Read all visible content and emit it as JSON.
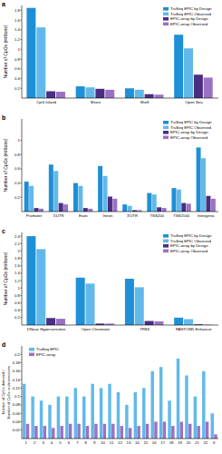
{
  "chart_data": [
    {
      "type": "bar",
      "panel": "a",
      "y_label": [
        "Number of CpGs (millions)"
      ],
      "categories": [
        "CpG-Island",
        "Shore",
        "Shelf",
        "Open Sea"
      ],
      "series": [
        {
          "name": "TruSeq EPIC by Design",
          "color": "#1f8fd6",
          "values": [
            1.85,
            0.24,
            0.2,
            1.3
          ]
        },
        {
          "name": "TruSeq EPIC Observed",
          "color": "#62b9e9",
          "values": [
            1.45,
            0.22,
            0.17,
            1.02
          ]
        },
        {
          "name": "EPIC-array by Design",
          "color": "#4b2d83",
          "values": [
            0.14,
            0.19,
            0.08,
            0.48
          ]
        },
        {
          "name": "EPIC-array Observed",
          "color": "#9a72c4",
          "values": [
            0.13,
            0.17,
            0.07,
            0.42
          ]
        }
      ],
      "ylim": [
        0,
        1.9
      ],
      "yticks": [
        0.2,
        0.4,
        0.6,
        0.8,
        1.0,
        1.2,
        1.4,
        1.6,
        1.8
      ],
      "legend": "upper right",
      "grid": false
    },
    {
      "type": "bar",
      "panel": "b",
      "y_label": [
        "Number of CpGs (millions)"
      ],
      "categories": [
        "Promoter",
        "5'UTR",
        "Exon",
        "Intron",
        "3'UTR",
        "TSS200",
        "TSS1500",
        "Intergenic"
      ],
      "series": [
        {
          "name": "TruSeq EPIC by Design",
          "color": "#1f8fd6",
          "values": [
            0.42,
            0.66,
            0.4,
            0.64,
            0.1,
            0.26,
            0.33,
            0.9
          ]
        },
        {
          "name": "TruSeq EPIC Observed",
          "color": "#62b9e9",
          "values": [
            0.36,
            0.57,
            0.36,
            0.5,
            0.08,
            0.24,
            0.31,
            0.75
          ]
        },
        {
          "name": "EPIC-array by Design",
          "color": "#4b2d83",
          "values": [
            0.05,
            0.12,
            0.05,
            0.21,
            0.02,
            0.06,
            0.12,
            0.22
          ]
        },
        {
          "name": "EPIC-array Observed",
          "color": "#9a72c4",
          "values": [
            0.04,
            0.1,
            0.04,
            0.18,
            0.02,
            0.05,
            0.11,
            0.18
          ]
        }
      ],
      "ylim": [
        0,
        1.3
      ],
      "yticks": [
        0.2,
        0.4,
        0.6,
        0.8,
        1.0
      ],
      "legend": "upper right",
      "grid": false
    },
    {
      "type": "bar",
      "panel": "c",
      "y_label": [
        "Number of CpGs (millions)"
      ],
      "categories": [
        "DNase Hypersensitive",
        "Open Chromatin",
        "TFBS",
        "FANTOM5 Enhancer"
      ],
      "series": [
        {
          "name": "TruSeq EPIC by Design",
          "color": "#1f8fd6",
          "values": [
            2.4,
            1.28,
            1.25,
            0.2
          ]
        },
        {
          "name": "TruSeq EPIC Observed",
          "color": "#62b9e9",
          "values": [
            2.05,
            1.12,
            1.02,
            0.16
          ]
        },
        {
          "name": "EPIC-array by Design",
          "color": "#4b2d83",
          "values": [
            0.19,
            0.04,
            0.11,
            0.02
          ]
        },
        {
          "name": "EPIC-array Observed",
          "color": "#9a72c4",
          "values": [
            0.17,
            0.04,
            0.1,
            0.01
          ]
        }
      ],
      "ylim": [
        0,
        2.5
      ],
      "yticks": [
        0.2,
        0.4,
        0.6,
        0.8,
        1.0,
        1.2,
        1.4,
        1.6,
        1.8,
        2.0,
        2.2,
        2.4
      ],
      "legend": "upper right",
      "grid": false
    },
    {
      "type": "bar",
      "panel": "d",
      "y_label": [
        "Number of CpGs detected /",
        "Number of CpGs in chromosome"
      ],
      "categories": [
        "1",
        "2",
        "3",
        "4",
        "5",
        "6",
        "7",
        "8",
        "9",
        "10",
        "11",
        "12",
        "13",
        "14",
        "15",
        "16",
        "17",
        "18",
        "19",
        "20",
        "21",
        "22",
        "X"
      ],
      "series": [
        {
          "name": "TruSeq EPIC",
          "color": "#62b9e9",
          "values": [
            0.13,
            0.1,
            0.09,
            0.08,
            0.1,
            0.1,
            0.12,
            0.1,
            0.13,
            0.12,
            0.13,
            0.11,
            0.08,
            0.11,
            0.12,
            0.16,
            0.17,
            0.09,
            0.19,
            0.15,
            0.1,
            0.16,
            0.06
          ]
        },
        {
          "name": "EPIC-array",
          "color": "#9a72c4",
          "values": [
            0.035,
            0.03,
            0.03,
            0.025,
            0.03,
            0.035,
            0.035,
            0.03,
            0.035,
            0.035,
            0.035,
            0.03,
            0.025,
            0.03,
            0.035,
            0.04,
            0.04,
            0.03,
            0.04,
            0.035,
            0.03,
            0.04,
            0.01
          ]
        }
      ],
      "ylim": [
        0,
        0.22
      ],
      "yticks": [
        0.02,
        0.04,
        0.06,
        0.08,
        0.1,
        0.12,
        0.14,
        0.16,
        0.18,
        0.2
      ],
      "legend": "upper left",
      "grid": false
    }
  ]
}
